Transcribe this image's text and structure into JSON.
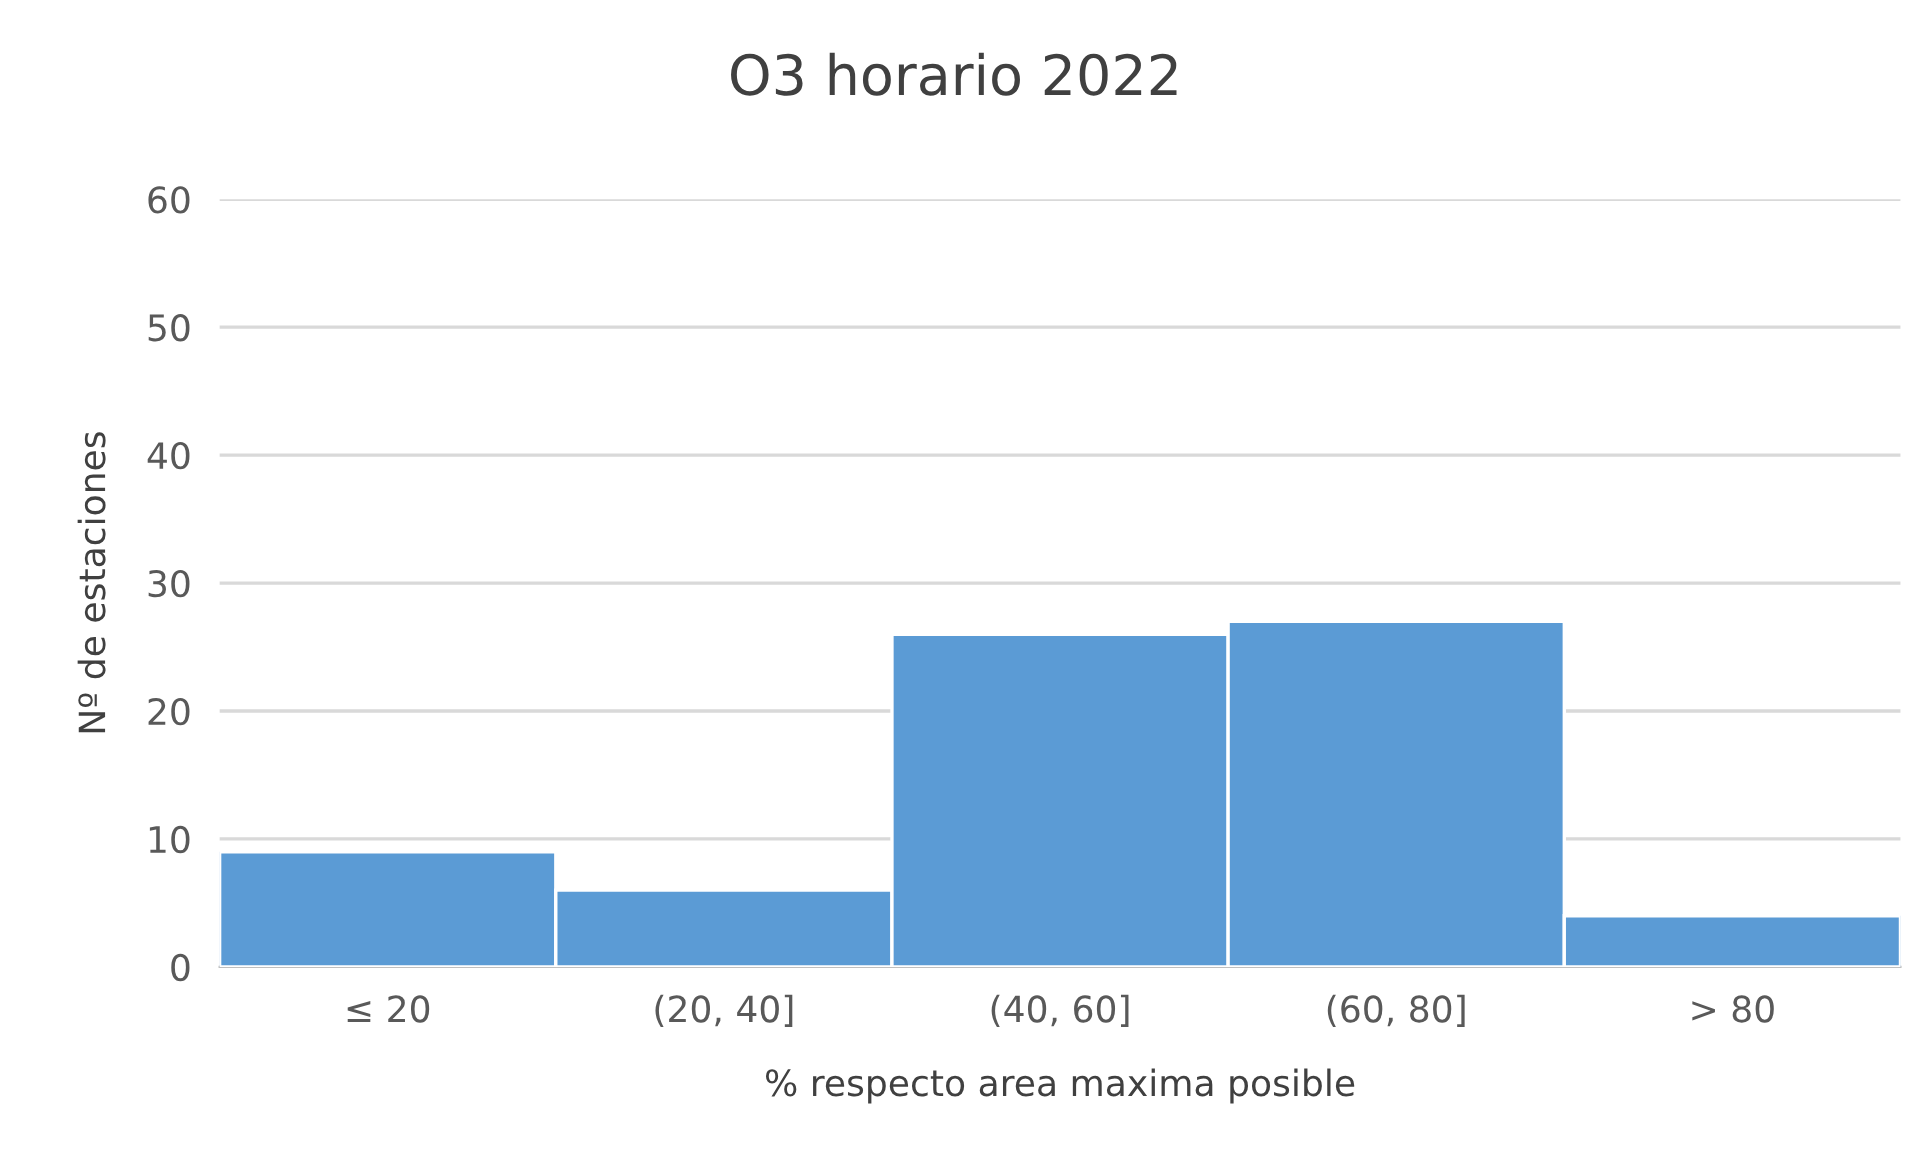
{
  "chart_data": {
    "type": "bar",
    "title": "O3 horario 2022",
    "xlabel": "% respecto area maxima posible",
    "ylabel": "Nº de estaciones",
    "categories": [
      "≤ 20",
      "(20, 40]",
      "(40, 60]",
      "(60, 80]",
      "> 80"
    ],
    "series": [
      {
        "color": "#5b9bd5",
        "values": [
          9,
          6,
          26,
          27,
          4
        ]
      }
    ],
    "ylim": [
      0,
      60
    ],
    "yticks": [
      0,
      10,
      20,
      30,
      40,
      50,
      60
    ],
    "grid": "y",
    "legend": false
  }
}
